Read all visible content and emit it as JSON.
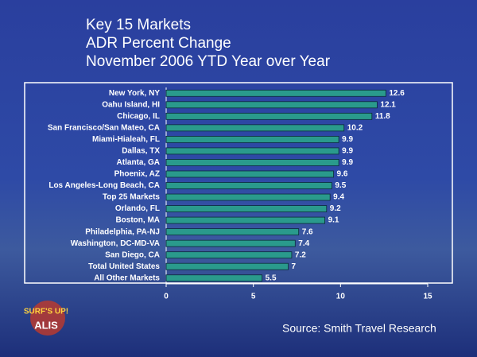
{
  "chart_data": {
    "type": "bar",
    "orientation": "horizontal",
    "title": [
      "Key 15 Markets",
      "ADR Percent Change",
      "November 2006 YTD Year over Year"
    ],
    "source": "Source: Smith Travel Research",
    "categories": [
      "New York, NY",
      "Oahu Island, HI",
      "Chicago, IL",
      "San Francisco/San Mateo, CA",
      "Miami-Hialeah, FL",
      "Dallas, TX",
      "Atlanta, GA",
      "Phoenix, AZ",
      "Los Angeles-Long Beach, CA",
      "Top 25 Markets",
      "Orlando, FL",
      "Boston, MA",
      "Philadelphia, PA-NJ",
      "Washington, DC-MD-VA",
      "San Diego, CA",
      "Total United States",
      "All Other Markets"
    ],
    "values": [
      12.6,
      12.1,
      11.8,
      10.2,
      9.9,
      9.9,
      9.9,
      9.6,
      9.5,
      9.4,
      9.2,
      9.1,
      7.6,
      7.4,
      7.2,
      7,
      5.5
    ],
    "color": "#2a9a8c",
    "xlim": [
      0,
      15
    ],
    "xticks": [
      0,
      5,
      10,
      15
    ]
  },
  "logo": {
    "top": "SURF'S UP!",
    "bottom": "ALIS"
  }
}
